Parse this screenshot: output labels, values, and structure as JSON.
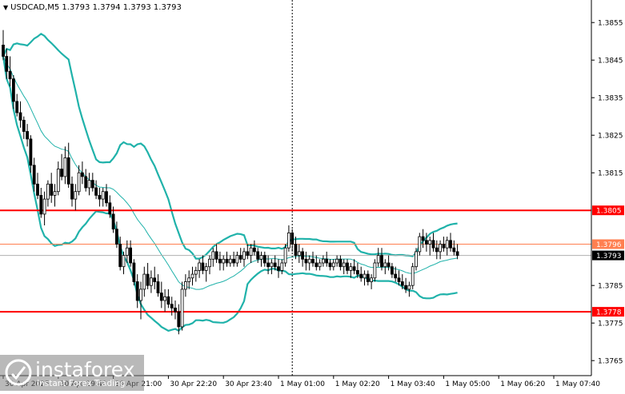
{
  "header": {
    "symbol_line": "USDCAD,M5  1.3793 1.3794 1.3793 1.3793"
  },
  "watermark": {
    "brand": "instaforex",
    "tagline": "Instant Forex Trading"
  },
  "colors": {
    "candle": "#000000",
    "bollinger": "#20b2aa",
    "support_resistance": "#ff0000",
    "current_level": "#ff7f50",
    "price_tag": "#000000"
  },
  "chart_data": {
    "type": "candlestick",
    "symbol": "USDCAD",
    "timeframe": "M5",
    "ylim": [
      1.3761,
      1.3861
    ],
    "y_ticks": [
      1.3855,
      1.3845,
      1.3835,
      1.3825,
      1.3815,
      1.3785,
      1.3775,
      1.3765
    ],
    "x_ticks": [
      {
        "label": "30 Apr 2025",
        "bar": 0
      },
      {
        "label": "30 Apr 19:40",
        "bar": 16
      },
      {
        "label": "30 Apr 21:00",
        "bar": 32
      },
      {
        "label": "30 Apr 22:20",
        "bar": 48
      },
      {
        "label": "30 Apr 23:40",
        "bar": 64
      },
      {
        "label": "1 May 01:00",
        "bar": 80
      },
      {
        "label": "1 May 02:20",
        "bar": 96
      },
      {
        "label": "1 May 03:40",
        "bar": 112
      },
      {
        "label": "1 May 05:00",
        "bar": 128
      },
      {
        "label": "1 May 06:20",
        "bar": 144
      },
      {
        "label": "1 May 07:40",
        "bar": 160
      }
    ],
    "levels": [
      {
        "label": "1.3805",
        "value": 1.3805,
        "kind": "resistance"
      },
      {
        "label": "1.3796",
        "value": 1.3796,
        "kind": "current"
      },
      {
        "label": "1.3778",
        "value": 1.3778,
        "kind": "support"
      }
    ],
    "current_price": {
      "label": "1.3793",
      "value": 1.3793
    },
    "separator_bar": 84,
    "ohlc": [
      [
        1.3849,
        1.3853,
        1.3845,
        1.3846
      ],
      [
        1.3846,
        1.3848,
        1.384,
        1.3842
      ],
      [
        1.3842,
        1.3846,
        1.3838,
        1.384
      ],
      [
        1.384,
        1.3841,
        1.3832,
        1.3834
      ],
      [
        1.3834,
        1.3836,
        1.383,
        1.3831
      ],
      [
        1.3831,
        1.3834,
        1.3827,
        1.3829
      ],
      [
        1.3829,
        1.383,
        1.3824,
        1.3826
      ],
      [
        1.3826,
        1.3828,
        1.3822,
        1.3824
      ],
      [
        1.3824,
        1.3825,
        1.3815,
        1.3817
      ],
      [
        1.3817,
        1.3819,
        1.381,
        1.3812
      ],
      [
        1.3812,
        1.3815,
        1.3808,
        1.3809
      ],
      [
        1.3809,
        1.3811,
        1.3803,
        1.3804
      ],
      [
        1.3804,
        1.381,
        1.3801,
        1.3808
      ],
      [
        1.3808,
        1.3813,
        1.3806,
        1.3812
      ],
      [
        1.3812,
        1.3815,
        1.3807,
        1.3809
      ],
      [
        1.3809,
        1.3812,
        1.3806,
        1.381
      ],
      [
        1.381,
        1.3818,
        1.3809,
        1.3816
      ],
      [
        1.3816,
        1.382,
        1.3813,
        1.3814
      ],
      [
        1.3814,
        1.3822,
        1.3812,
        1.3819
      ],
      [
        1.3819,
        1.3823,
        1.3811,
        1.3812
      ],
      [
        1.3812,
        1.3814,
        1.3806,
        1.3808
      ],
      [
        1.3808,
        1.3812,
        1.3805,
        1.381
      ],
      [
        1.381,
        1.3817,
        1.3809,
        1.3815
      ],
      [
        1.3815,
        1.3818,
        1.3812,
        1.3814
      ],
      [
        1.3814,
        1.3816,
        1.381,
        1.3811
      ],
      [
        1.3811,
        1.3815,
        1.3809,
        1.3813
      ],
      [
        1.3813,
        1.3815,
        1.381,
        1.3811
      ],
      [
        1.3811,
        1.3813,
        1.3808,
        1.3809
      ],
      [
        1.3809,
        1.3811,
        1.3806,
        1.3808
      ],
      [
        1.3808,
        1.3811,
        1.3806,
        1.381
      ],
      [
        1.381,
        1.3812,
        1.3806,
        1.3807
      ],
      [
        1.3807,
        1.3809,
        1.3803,
        1.3804
      ],
      [
        1.3804,
        1.3806,
        1.3799,
        1.38
      ],
      [
        1.38,
        1.3802,
        1.3795,
        1.3796
      ],
      [
        1.3796,
        1.3798,
        1.3789,
        1.379
      ],
      [
        1.379,
        1.3794,
        1.3788,
        1.3793
      ],
      [
        1.3793,
        1.3797,
        1.3791,
        1.3795
      ],
      [
        1.3795,
        1.3797,
        1.379,
        1.3791
      ],
      [
        1.3791,
        1.3792,
        1.3785,
        1.3786
      ],
      [
        1.3786,
        1.3788,
        1.3779,
        1.3781
      ],
      [
        1.3781,
        1.3786,
        1.3776,
        1.3784
      ],
      [
        1.3784,
        1.379,
        1.3782,
        1.3788
      ],
      [
        1.3788,
        1.3791,
        1.3784,
        1.3785
      ],
      [
        1.3785,
        1.3789,
        1.3783,
        1.3787
      ],
      [
        1.3787,
        1.379,
        1.3784,
        1.3786
      ],
      [
        1.3786,
        1.3788,
        1.3782,
        1.3783
      ],
      [
        1.3783,
        1.3786,
        1.3779,
        1.3781
      ],
      [
        1.3781,
        1.3784,
        1.3778,
        1.3782
      ],
      [
        1.3782,
        1.3784,
        1.3779,
        1.378
      ],
      [
        1.378,
        1.3782,
        1.3777,
        1.3779
      ],
      [
        1.3779,
        1.3781,
        1.3776,
        1.3778
      ],
      [
        1.3778,
        1.378,
        1.3772,
        1.3774
      ],
      [
        1.3774,
        1.3786,
        1.3773,
        1.3784
      ],
      [
        1.3784,
        1.3788,
        1.3782,
        1.3786
      ],
      [
        1.3786,
        1.3789,
        1.3784,
        1.3787
      ],
      [
        1.3787,
        1.379,
        1.3785,
        1.3788
      ],
      [
        1.3788,
        1.379,
        1.3786,
        1.3789
      ],
      [
        1.3789,
        1.3792,
        1.3787,
        1.3791
      ],
      [
        1.3791,
        1.3793,
        1.3788,
        1.3789
      ],
      [
        1.3789,
        1.3791,
        1.3786,
        1.379
      ],
      [
        1.379,
        1.3793,
        1.3788,
        1.3792
      ],
      [
        1.3792,
        1.3795,
        1.379,
        1.3794
      ],
      [
        1.3794,
        1.3796,
        1.3791,
        1.3792
      ],
      [
        1.3792,
        1.3794,
        1.3789,
        1.3791
      ],
      [
        1.3791,
        1.3793,
        1.3789,
        1.3792
      ],
      [
        1.3792,
        1.3794,
        1.379,
        1.3791
      ],
      [
        1.3791,
        1.3793,
        1.379,
        1.3792
      ],
      [
        1.3792,
        1.3794,
        1.379,
        1.3791
      ],
      [
        1.3791,
        1.3794,
        1.379,
        1.3793
      ],
      [
        1.3793,
        1.3795,
        1.3791,
        1.3792
      ],
      [
        1.3792,
        1.3795,
        1.379,
        1.3794
      ],
      [
        1.3794,
        1.3796,
        1.3792,
        1.3793
      ],
      [
        1.3793,
        1.3796,
        1.3791,
        1.3795
      ],
      [
        1.3795,
        1.3797,
        1.3793,
        1.3794
      ],
      [
        1.3794,
        1.3795,
        1.3791,
        1.3792
      ],
      [
        1.3792,
        1.3794,
        1.379,
        1.3793
      ],
      [
        1.3793,
        1.3794,
        1.379,
        1.3791
      ],
      [
        1.3791,
        1.3793,
        1.3788,
        1.379
      ],
      [
        1.379,
        1.3792,
        1.3788,
        1.3791
      ],
      [
        1.3791,
        1.3793,
        1.3789,
        1.379
      ],
      [
        1.379,
        1.3792,
        1.3787,
        1.3789
      ],
      [
        1.3789,
        1.3792,
        1.3788,
        1.3791
      ],
      [
        1.3791,
        1.3796,
        1.379,
        1.3795
      ],
      [
        1.3795,
        1.3801,
        1.3794,
        1.3799
      ],
      [
        1.3799,
        1.38,
        1.3794,
        1.3796
      ],
      [
        1.3796,
        1.3798,
        1.3792,
        1.3793
      ],
      [
        1.3793,
        1.3796,
        1.3791,
        1.3794
      ],
      [
        1.3794,
        1.3795,
        1.379,
        1.3792
      ],
      [
        1.3792,
        1.3794,
        1.3789,
        1.3791
      ],
      [
        1.3791,
        1.3793,
        1.3789,
        1.3792
      ],
      [
        1.3792,
        1.3794,
        1.379,
        1.3791
      ],
      [
        1.3791,
        1.3793,
        1.3789,
        1.379
      ],
      [
        1.379,
        1.3792,
        1.3789,
        1.3791
      ],
      [
        1.3791,
        1.3793,
        1.379,
        1.3792
      ],
      [
        1.3792,
        1.3794,
        1.379,
        1.3791
      ],
      [
        1.3791,
        1.3792,
        1.3789,
        1.379
      ],
      [
        1.379,
        1.3792,
        1.3789,
        1.3791
      ],
      [
        1.3791,
        1.3793,
        1.379,
        1.3792
      ],
      [
        1.3792,
        1.3793,
        1.3789,
        1.379
      ],
      [
        1.379,
        1.3792,
        1.3788,
        1.3791
      ],
      [
        1.3791,
        1.3792,
        1.3788,
        1.3789
      ],
      [
        1.3789,
        1.3791,
        1.3787,
        1.379
      ],
      [
        1.379,
        1.3792,
        1.3788,
        1.3789
      ],
      [
        1.3789,
        1.3791,
        1.3787,
        1.3788
      ],
      [
        1.3788,
        1.379,
        1.3786,
        1.3787
      ],
      [
        1.3787,
        1.3789,
        1.3785,
        1.3788
      ],
      [
        1.3788,
        1.3789,
        1.3785,
        1.3786
      ],
      [
        1.3786,
        1.3788,
        1.3784,
        1.3787
      ],
      [
        1.3787,
        1.3792,
        1.3786,
        1.3791
      ],
      [
        1.3791,
        1.3795,
        1.379,
        1.3793
      ],
      [
        1.3793,
        1.3795,
        1.3789,
        1.379
      ],
      [
        1.379,
        1.3792,
        1.3788,
        1.3791
      ],
      [
        1.3791,
        1.3793,
        1.3789,
        1.379
      ],
      [
        1.379,
        1.3791,
        1.3787,
        1.3788
      ],
      [
        1.3788,
        1.379,
        1.3786,
        1.3787
      ],
      [
        1.3787,
        1.3789,
        1.3785,
        1.3786
      ],
      [
        1.3786,
        1.3788,
        1.3784,
        1.3785
      ],
      [
        1.3785,
        1.3787,
        1.3783,
        1.3784
      ],
      [
        1.3784,
        1.3786,
        1.3782,
        1.3785
      ],
      [
        1.3785,
        1.3791,
        1.3784,
        1.379
      ],
      [
        1.379,
        1.3795,
        1.3789,
        1.3794
      ],
      [
        1.3794,
        1.3799,
        1.3793,
        1.3798
      ],
      [
        1.3798,
        1.38,
        1.3795,
        1.3797
      ],
      [
        1.3797,
        1.3799,
        1.3794,
        1.3796
      ],
      [
        1.3796,
        1.3798,
        1.3793,
        1.3797
      ],
      [
        1.3797,
        1.3799,
        1.3794,
        1.3795
      ],
      [
        1.3795,
        1.3797,
        1.3792,
        1.3794
      ],
      [
        1.3794,
        1.3797,
        1.3792,
        1.3796
      ],
      [
        1.3796,
        1.3798,
        1.3794,
        1.3795
      ],
      [
        1.3795,
        1.3798,
        1.3793,
        1.3797
      ],
      [
        1.3797,
        1.3799,
        1.3794,
        1.3795
      ],
      [
        1.3795,
        1.3797,
        1.3793,
        1.3794
      ],
      [
        1.3794,
        1.3796,
        1.3792,
        1.3793
      ]
    ]
  }
}
